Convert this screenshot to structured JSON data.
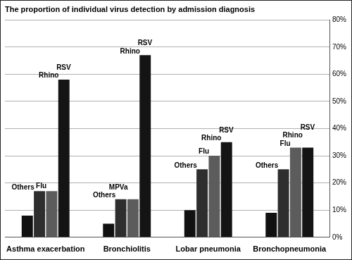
{
  "chart_data": {
    "type": "bar",
    "title": "The proportion of individual virus detection by admission diagnosis",
    "categories": [
      "Asthma exacerbation",
      "Bronchiolitis",
      "Lobar pneumonia",
      "Bronchopneumonia"
    ],
    "series": [
      {
        "color": "#111111",
        "values": [
          8,
          5,
          10,
          9
        ],
        "labels": [
          "Others",
          "Others",
          "Others",
          "Others"
        ]
      },
      {
        "color": "#2e2e2e",
        "values": [
          17,
          14,
          25,
          25
        ],
        "labels": [
          "Flu",
          "MPVa",
          "Flu",
          "Flu"
        ]
      },
      {
        "color": "#5c5c5c",
        "values": [
          17,
          14,
          30,
          33
        ],
        "labels": [
          "Rhino",
          "Rhino",
          "Rhino",
          "Rhino"
        ]
      },
      {
        "color": "#141414",
        "values": [
          58,
          67,
          35,
          33
        ],
        "labels": [
          "RSV",
          "RSV",
          "RSV",
          "RSV"
        ]
      }
    ],
    "ylim": [
      0,
      80
    ],
    "yticks": [
      {
        "value": 0,
        "label": "0%"
      },
      {
        "value": 10,
        "label": "10%"
      },
      {
        "value": 20,
        "label": "20%"
      },
      {
        "value": 30,
        "label": "30%"
      },
      {
        "value": 40,
        "label": "40%"
      },
      {
        "value": 50,
        "label": "50%"
      },
      {
        "value": 60,
        "label": "60%"
      },
      {
        "value": 70,
        "label": "70%"
      },
      {
        "value": 80,
        "label": "80%"
      }
    ],
    "grid": true
  }
}
